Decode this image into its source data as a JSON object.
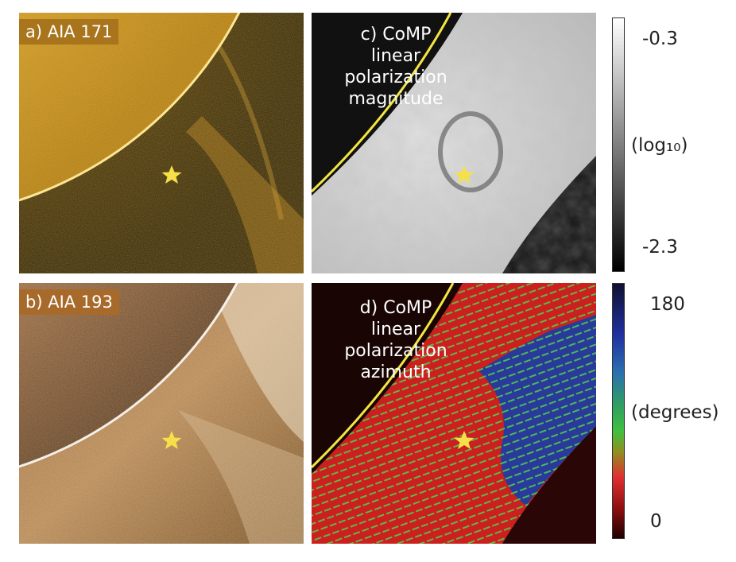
{
  "panels": {
    "a": {
      "label": "a) AIA 171",
      "tag_color": "#a8741c"
    },
    "b": {
      "label": "b) AIA 193",
      "tag_color": "#a86a2a"
    },
    "c": {
      "lines": [
        "c) CoMP",
        "linear",
        "polarization",
        "magnitude"
      ]
    },
    "d": {
      "lines": [
        "d) CoMP",
        "linear",
        "polarization",
        "azimuth"
      ]
    }
  },
  "colorbar_top": {
    "max": "-0.3",
    "unit": "(log₁₀)",
    "min": "-2.3"
  },
  "colorbar_bottom": {
    "max": "180",
    "unit": "(degrees)",
    "min": "0"
  },
  "markers": {
    "star_color": "#f5e04a",
    "limb_color": "#f2e640",
    "vector_color": "#4fd14a"
  }
}
